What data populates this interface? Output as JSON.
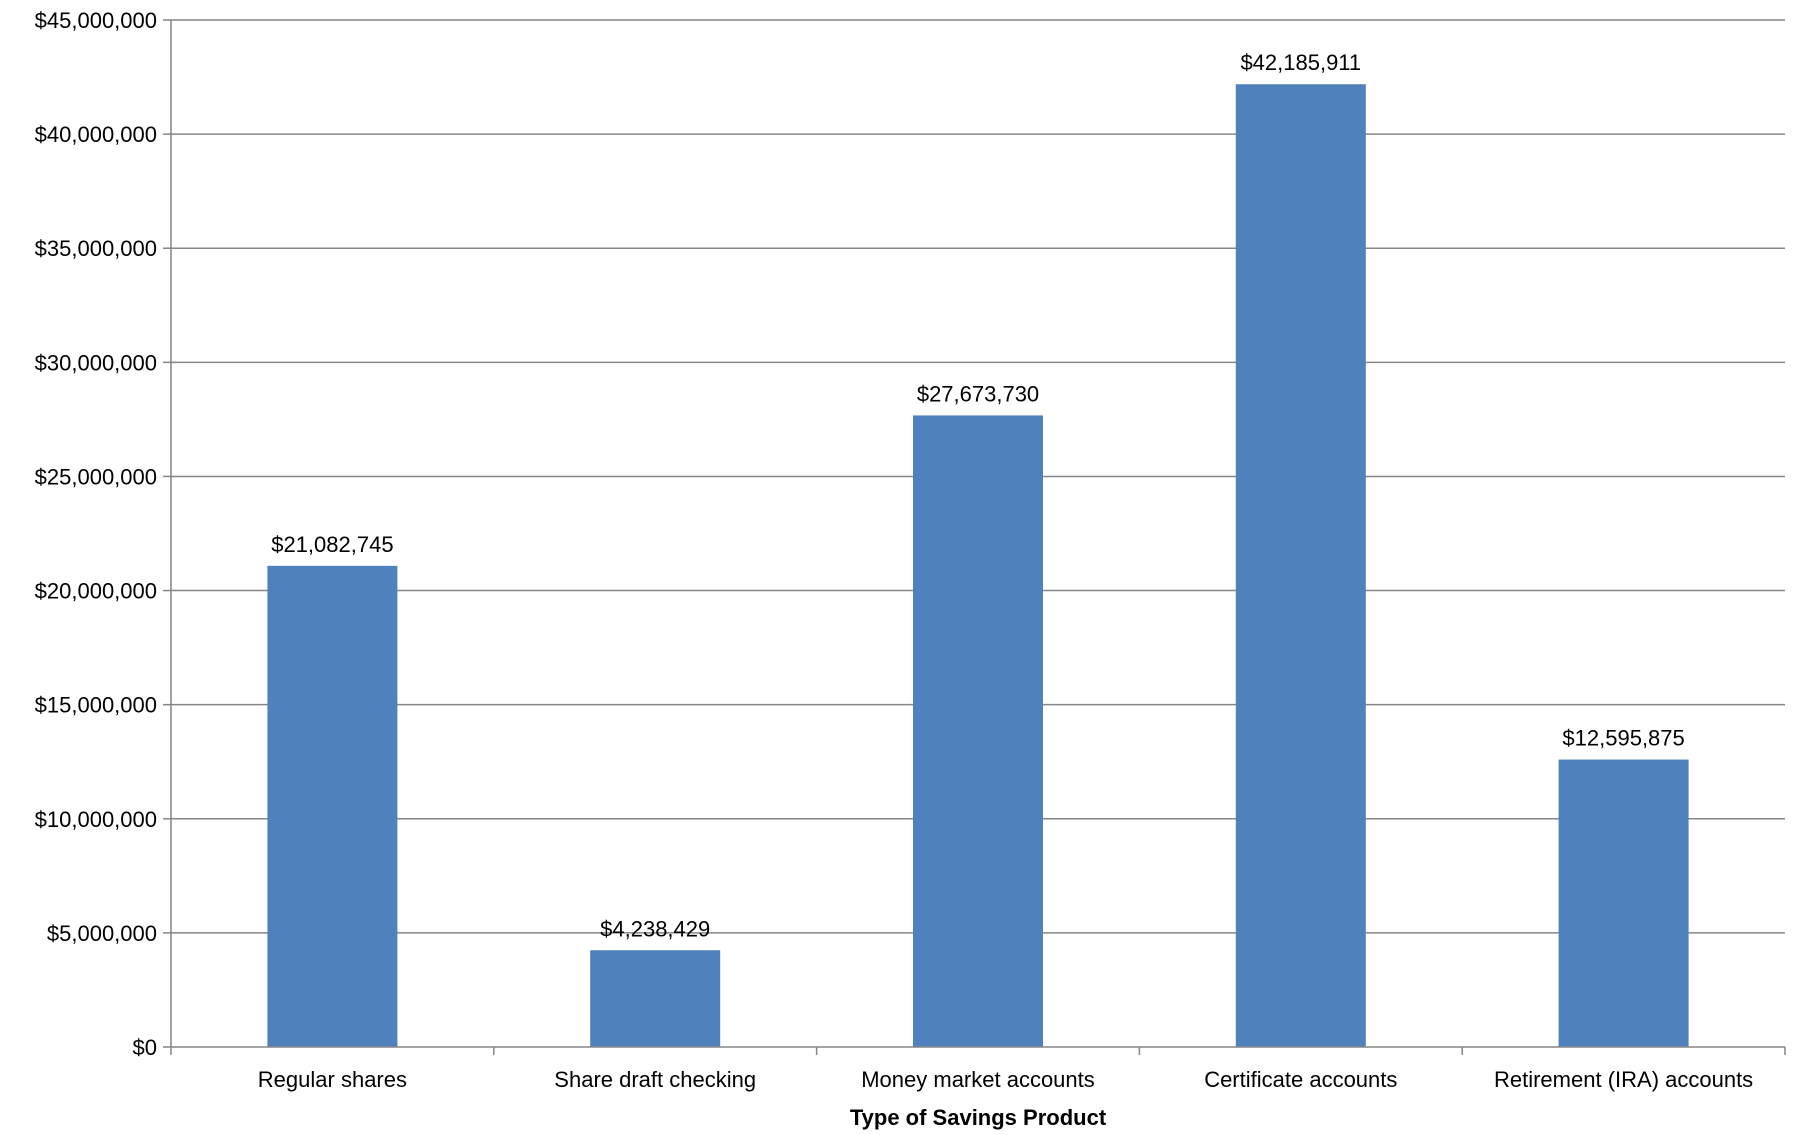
{
  "chart_data": {
    "type": "bar",
    "title": "",
    "xlabel": "Type of Savings Product",
    "ylabel": "",
    "categories": [
      "Regular shares",
      "Share draft checking",
      "Money market accounts",
      "Certificate accounts",
      "Retirement (IRA) accounts"
    ],
    "values": [
      21082745,
      4238429,
      27673730,
      42185911,
      12595875
    ],
    "value_labels": [
      "$21,082,745",
      "$4,238,429",
      "$27,673,730",
      "$42,185,911",
      "$12,595,875"
    ],
    "ylim": [
      0,
      45000000
    ],
    "yticks": [
      0,
      5000000,
      10000000,
      15000000,
      20000000,
      25000000,
      30000000,
      35000000,
      40000000,
      45000000
    ],
    "ytick_labels": [
      "$0",
      "$5,000,000",
      "$10,000,000",
      "$15,000,000",
      "$20,000,000",
      "$25,000,000",
      "$30,000,000",
      "$35,000,000",
      "$40,000,000",
      "$45,000,000"
    ],
    "grid": true,
    "legend": "none",
    "colors": {
      "bar": "#4f81bd",
      "grid": "#868686",
      "axis": "#868686"
    }
  }
}
